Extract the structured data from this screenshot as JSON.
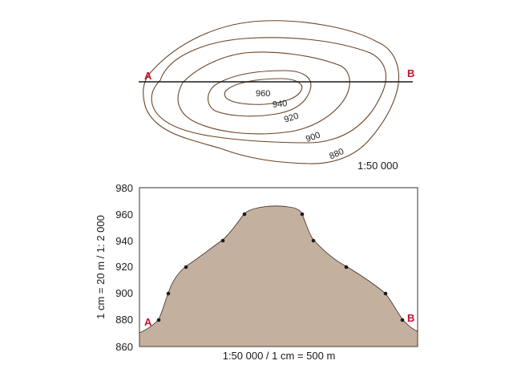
{
  "map": {
    "point_a": "A",
    "point_b": "B",
    "scale": "1:50 000",
    "contour_labels": [
      "960",
      "940",
      "920",
      "900",
      "880"
    ]
  },
  "profile": {
    "point_a": "A",
    "point_b": "B",
    "y_ticks": [
      "980",
      "960",
      "940",
      "920",
      "900",
      "880",
      "860"
    ],
    "y_axis_label": "1 cm = 20 m / 1: 2 000",
    "x_axis_label": "1:50 000 / 1 cm = 500 m",
    "fill_color": "#c4b09f",
    "elevation_points": [
      880,
      900,
      920,
      940,
      960,
      960,
      940,
      920,
      900,
      880
    ]
  },
  "colors": {
    "contour": "#6b4426",
    "endpoint": "#c8102e"
  }
}
